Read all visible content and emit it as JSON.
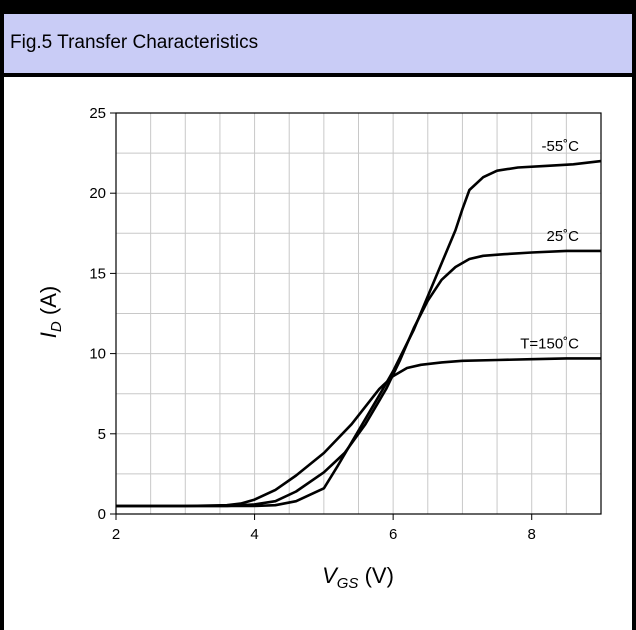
{
  "header": {
    "title": "Fig.5 Transfer Characteristics"
  },
  "chart_data": {
    "type": "line",
    "xlabel_main": "V",
    "xlabel_sub": "GS",
    "xlabel_unit": " (V)",
    "ylabel_main": "I",
    "ylabel_sub": "D",
    "ylabel_unit": " (A)",
    "xlim": [
      2,
      9
    ],
    "ylim": [
      0,
      25
    ],
    "x_ticks": [
      2,
      4,
      6,
      8
    ],
    "y_ticks": [
      0,
      5,
      10,
      15,
      20,
      25
    ],
    "x_minor_step": 0.5,
    "y_minor_step": 2.5,
    "grid": true,
    "line_color": "#000000",
    "grid_color": "#c8c8c8",
    "series": [
      {
        "name": "-55˚C",
        "x": [
          2,
          3.0,
          3.6,
          4.0,
          4.3,
          4.6,
          5.0,
          5.2,
          5.5,
          5.8,
          6.0,
          6.3,
          6.6,
          6.9,
          7.0,
          7.1,
          7.3,
          7.5,
          7.8,
          8.2,
          8.6,
          9.0
        ],
        "y": [
          0.5,
          0.5,
          0.5,
          0.5,
          0.55,
          0.8,
          1.6,
          3.0,
          5.2,
          7.4,
          8.9,
          11.5,
          14.6,
          17.7,
          19.0,
          20.2,
          21.0,
          21.4,
          21.6,
          21.7,
          21.8,
          22.0
        ]
      },
      {
        "name": "25˚C",
        "x": [
          2,
          3.0,
          3.6,
          4.0,
          4.3,
          4.6,
          5.0,
          5.3,
          5.6,
          5.9,
          6.1,
          6.3,
          6.5,
          6.7,
          6.9,
          7.1,
          7.3,
          7.6,
          8.0,
          8.5,
          9.0
        ],
        "y": [
          0.5,
          0.5,
          0.5,
          0.6,
          0.8,
          1.4,
          2.6,
          3.8,
          5.6,
          7.8,
          9.6,
          11.6,
          13.3,
          14.6,
          15.4,
          15.9,
          16.1,
          16.2,
          16.3,
          16.4,
          16.4
        ]
      },
      {
        "name": "T=150˚C",
        "x": [
          2,
          3.0,
          3.6,
          3.8,
          4.0,
          4.3,
          4.6,
          5.0,
          5.4,
          5.8,
          6.0,
          6.2,
          6.4,
          6.7,
          7.0,
          7.5,
          8.0,
          8.5,
          9.0
        ],
        "y": [
          0.5,
          0.5,
          0.55,
          0.65,
          0.9,
          1.5,
          2.4,
          3.8,
          5.6,
          7.8,
          8.6,
          9.1,
          9.3,
          9.45,
          9.55,
          9.6,
          9.65,
          9.7,
          9.7
        ]
      }
    ]
  }
}
